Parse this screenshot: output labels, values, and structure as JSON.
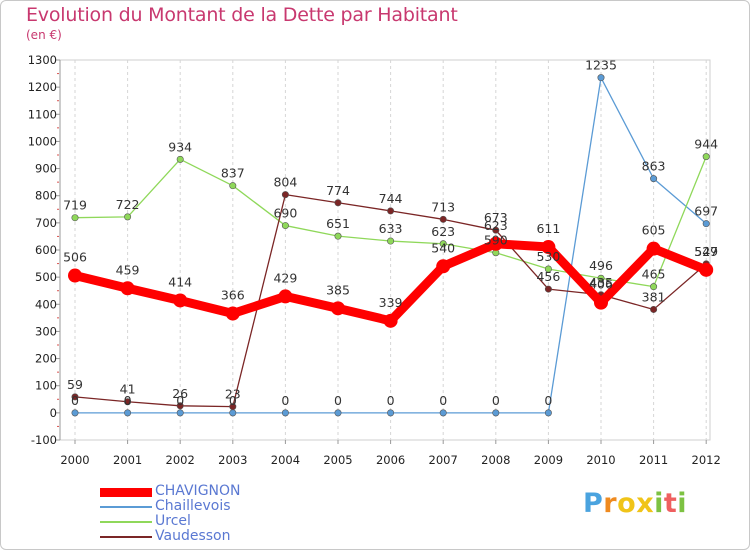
{
  "title": "Evolution du Montant de la Dette par Habitant",
  "subtitle": "(en €)",
  "logo": {
    "letters": [
      "P",
      "r",
      "o",
      "x",
      "i",
      "t",
      "i"
    ],
    "colors": [
      "#4aa3df",
      "#ef8a1f",
      "#f0c419",
      "#f0c419",
      "#7dc242",
      "#ef5f5f",
      "#7dc242"
    ]
  },
  "chart_data": {
    "type": "line",
    "title": "Evolution du Montant de la Dette par Habitant",
    "subtitle": "(en €)",
    "xlabel": "",
    "ylabel": "",
    "x": [
      "2000",
      "2001",
      "2002",
      "2003",
      "2004",
      "2005",
      "2006",
      "2007",
      "2008",
      "2009",
      "2010",
      "2011",
      "2012"
    ],
    "ylim": [
      -100,
      1300
    ],
    "yticks": [
      "-100",
      "0",
      "100",
      "200",
      "300",
      "400",
      "500",
      "600",
      "700",
      "800",
      "900",
      "1000",
      "1100",
      "1200",
      "1300"
    ],
    "grid": "vertical dashed",
    "legend": "bottom-left",
    "series": [
      {
        "name": "CHAVIGNON",
        "color": "#ff0000",
        "emphasis": true,
        "values": [
          506,
          459,
          414,
          366,
          429,
          385,
          339,
          540,
          623,
          611,
          406,
          605,
          527
        ],
        "labels": [
          "506",
          "459",
          "414",
          "366",
          "429",
          "385",
          "339",
          "540",
          "623",
          "611",
          "406",
          "605",
          "527"
        ]
      },
      {
        "name": "Chaillevois",
        "color": "#5b9bd5",
        "emphasis": false,
        "values": [
          0,
          0,
          0,
          0,
          0,
          0,
          0,
          0,
          0,
          0,
          1235,
          863,
          697
        ],
        "labels": [
          "0",
          "0",
          "0",
          "0",
          "0",
          "0",
          "0",
          "0",
          "0",
          "0",
          "1235",
          "863",
          "697"
        ]
      },
      {
        "name": "Urcel",
        "color": "#8fd85a",
        "emphasis": false,
        "values": [
          719,
          722,
          934,
          837,
          690,
          651,
          633,
          623,
          590,
          530,
          496,
          465,
          944
        ],
        "labels": [
          "719",
          "722",
          "934",
          "837",
          "690",
          "651",
          "633",
          "623",
          "590",
          "530",
          "496",
          "465",
          "944"
        ]
      },
      {
        "name": "Vaudesson",
        "color": "#7b2626",
        "emphasis": false,
        "values": [
          59,
          41,
          26,
          23,
          804,
          774,
          744,
          713,
          673,
          456,
          435,
          381,
          549
        ],
        "labels": [
          "59",
          "41",
          "26",
          "23",
          "804",
          "774",
          "744",
          "713",
          "673",
          "456",
          "435",
          "381",
          "549"
        ]
      }
    ]
  }
}
